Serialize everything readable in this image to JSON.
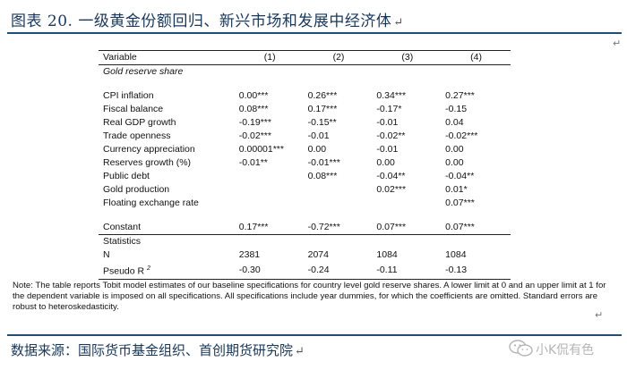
{
  "header": {
    "title": "图表 20.  一级黄金份额回归、新兴市场和发展中经济体",
    "return_mark": "↵"
  },
  "table": {
    "header": [
      "Variable",
      "(1)",
      "(2)",
      "(3)",
      "(4)"
    ],
    "subheader": "Gold reserve share",
    "rows": [
      [
        "CPI inflation",
        "0.00***",
        "0.26***",
        "0.34***",
        "0.27***"
      ],
      [
        "Fiscal balance",
        "0.08***",
        "0.17***",
        "-0.17*",
        "-0.15"
      ],
      [
        "Real GDP growth",
        "-0.19***",
        "-0.15**",
        "-0.01",
        "0.04"
      ],
      [
        "Trade openness",
        "-0.02***",
        "-0.01",
        "-0.02**",
        "-0.02***"
      ],
      [
        "Currency appreciation",
        "0.00001***",
        "0.00",
        "-0.01",
        "0.00"
      ],
      [
        "Reserves growth (%)",
        "-0.01**",
        "-0.01***",
        "0.00",
        "0.00"
      ],
      [
        "Public debt",
        "",
        "0.08***",
        "-0.04**",
        "-0.04**"
      ],
      [
        "Gold production",
        "",
        "",
        "0.02***",
        "0.01*"
      ],
      [
        "Floating exchange rate",
        "",
        "",
        "",
        "0.07***"
      ]
    ],
    "constant": [
      "Constant",
      "0.17***",
      "-0.72***",
      "0.07***",
      "0.07***"
    ],
    "statistics_label": "Statistics",
    "n_row": [
      "N",
      "2381",
      "2074",
      "1084",
      "1084"
    ],
    "pseudo_label": "Pseudo R",
    "pseudo_sup": "2",
    "pseudo_values": [
      "-0.30",
      "-0.24",
      "-0.11",
      "-0.13"
    ]
  },
  "note": "Note: The table reports Tobit model estimates of our baseline specifications for country level gold reserve shares. A lower limit at 0 and an upper limit at 1 for the dependent variable is imposed on all specifications. All specifications include year dummies, for which the coefficients are omitted. Standard errors are robust to heteroskedasticity.",
  "side_marks": {
    "right_top": "↵",
    "right_mid": "↵"
  },
  "footer": {
    "source": "数据来源：国际货币基金组织、首创期货研究院",
    "return_mark": "↵"
  },
  "watermark": {
    "text": "小K侃有色",
    "icon": "wechat-icon",
    "color": "#b5b5b5"
  }
}
